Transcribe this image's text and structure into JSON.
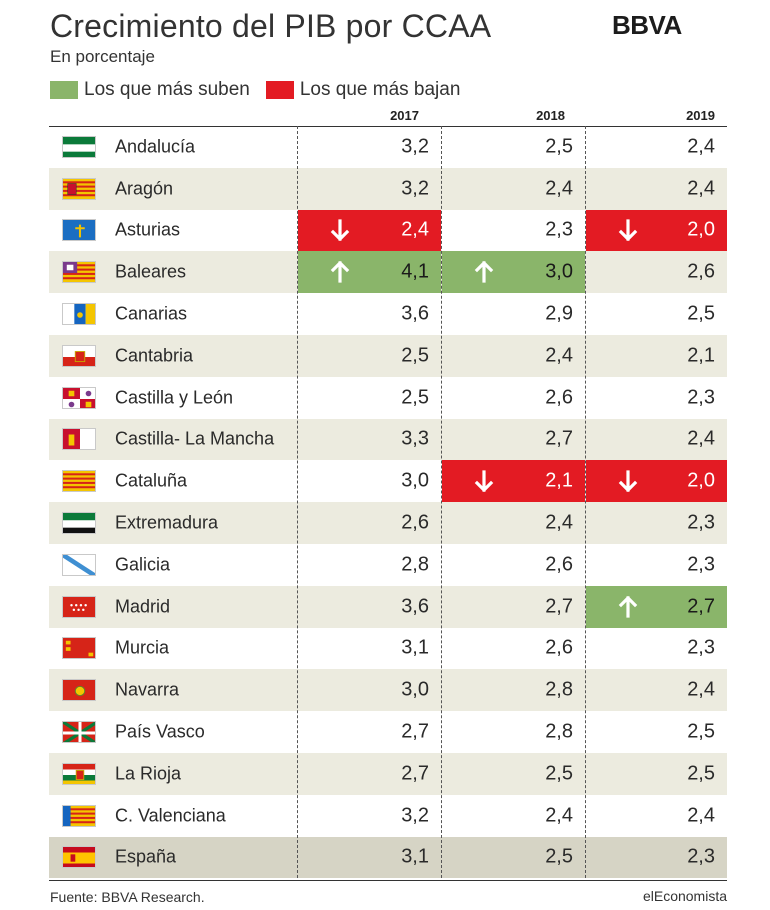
{
  "header": {
    "title": "Crecimiento del PIB por CCAA",
    "logo": "BBVA",
    "subtitle": "En porcentaje"
  },
  "legend": [
    {
      "label": "Los que más suben",
      "color": "#8ab56a"
    },
    {
      "label": "Los que más bajan",
      "color": "#e31b23"
    }
  ],
  "colors": {
    "up": "#8ab56a",
    "down": "#e31b23"
  },
  "footer": {
    "source": "Fuente: BBVA Research.",
    "brand": "elEconomista"
  },
  "chart_data": {
    "type": "table",
    "title": "Crecimiento del PIB por CCAA",
    "columns": [
      "2017",
      "2018",
      "2019"
    ],
    "rows": [
      {
        "name": "Andalucía",
        "flag": "andalucia-flag",
        "values": [
          "3,2",
          "2,5",
          "2,4"
        ],
        "marks": [
          "",
          "",
          ""
        ]
      },
      {
        "name": "Aragón",
        "flag": "aragon-flag",
        "values": [
          "3,2",
          "2,4",
          "2,4"
        ],
        "marks": [
          "",
          "",
          ""
        ]
      },
      {
        "name": "Asturias",
        "flag": "asturias-flag",
        "values": [
          "2,4",
          "2,3",
          "2,0"
        ],
        "marks": [
          "down",
          "",
          "down"
        ]
      },
      {
        "name": "Baleares",
        "flag": "baleares-flag",
        "values": [
          "4,1",
          "3,0",
          "2,6"
        ],
        "marks": [
          "up",
          "up",
          ""
        ]
      },
      {
        "name": "Canarias",
        "flag": "canarias-flag",
        "values": [
          "3,6",
          "2,9",
          "2,5"
        ],
        "marks": [
          "",
          "",
          ""
        ]
      },
      {
        "name": "Cantabria",
        "flag": "cantabria-flag",
        "values": [
          "2,5",
          "2,4",
          "2,1"
        ],
        "marks": [
          "",
          "",
          ""
        ]
      },
      {
        "name": "Castilla y León",
        "flag": "castilla-leon-flag",
        "values": [
          "2,5",
          "2,6",
          "2,3"
        ],
        "marks": [
          "",
          "",
          ""
        ]
      },
      {
        "name": "Castilla- La Mancha",
        "flag": "castilla-la-mancha-flag",
        "values": [
          "3,3",
          "2,7",
          "2,4"
        ],
        "marks": [
          "",
          "",
          ""
        ]
      },
      {
        "name": "Cataluña",
        "flag": "cataluna-flag",
        "values": [
          "3,0",
          "2,1",
          "2,0"
        ],
        "marks": [
          "",
          "down",
          "down"
        ]
      },
      {
        "name": "Extremadura",
        "flag": "extremadura-flag",
        "values": [
          "2,6",
          "2,4",
          "2,3"
        ],
        "marks": [
          "",
          "",
          ""
        ]
      },
      {
        "name": "Galicia",
        "flag": "galicia-flag",
        "values": [
          "2,8",
          "2,6",
          "2,3"
        ],
        "marks": [
          "",
          "",
          ""
        ]
      },
      {
        "name": "Madrid",
        "flag": "madrid-flag",
        "values": [
          "3,6",
          "2,7",
          "2,7"
        ],
        "marks": [
          "",
          "",
          "up"
        ]
      },
      {
        "name": "Murcia",
        "flag": "murcia-flag",
        "values": [
          "3,1",
          "2,6",
          "2,3"
        ],
        "marks": [
          "",
          "",
          ""
        ]
      },
      {
        "name": "Navarra",
        "flag": "navarra-flag",
        "values": [
          "3,0",
          "2,8",
          "2,4"
        ],
        "marks": [
          "",
          "",
          ""
        ]
      },
      {
        "name": "País Vasco",
        "flag": "pais-vasco-flag",
        "values": [
          "2,7",
          "2,8",
          "2,5"
        ],
        "marks": [
          "",
          "",
          ""
        ]
      },
      {
        "name": "La Rioja",
        "flag": "la-rioja-flag",
        "values": [
          "2,7",
          "2,5",
          "2,5"
        ],
        "marks": [
          "",
          "",
          ""
        ]
      },
      {
        "name": "C. Valenciana",
        "flag": "valenciana-flag",
        "values": [
          "3,2",
          "2,4",
          "2,4"
        ],
        "marks": [
          "",
          "",
          ""
        ]
      },
      {
        "name": "España",
        "flag": "espana-flag",
        "values": [
          "3,1",
          "2,5",
          "2,3"
        ],
        "marks": [
          "",
          "",
          ""
        ]
      }
    ]
  }
}
